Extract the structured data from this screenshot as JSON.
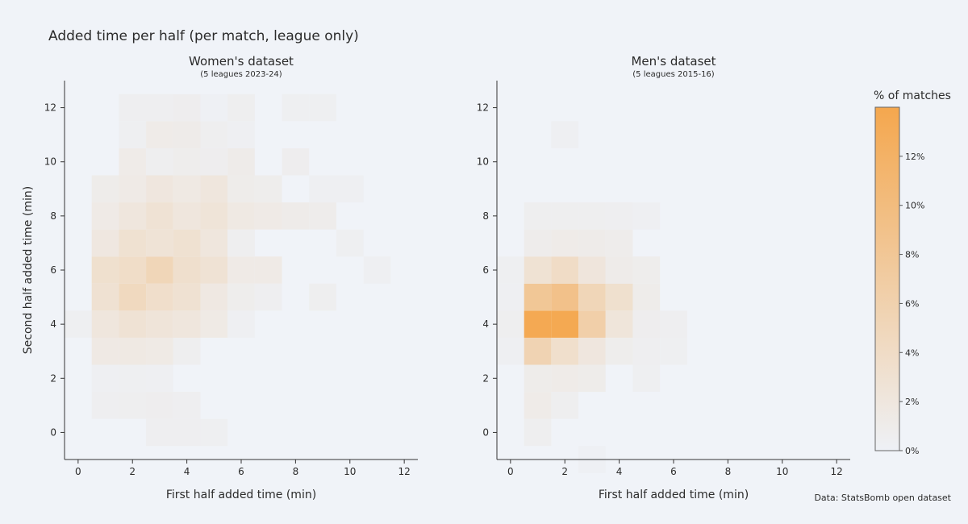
{
  "title": "Added time per half (per match, league only)",
  "source_note": "Data: StatsBomb open dataset",
  "colorbar": {
    "label": "% of matches",
    "ticks": [
      "0%",
      "2%",
      "4%",
      "6%",
      "8%",
      "10%",
      "12%"
    ],
    "tick_values": [
      0,
      2,
      4,
      6,
      8,
      10,
      12
    ],
    "max": 14,
    "color_low": "#eef1f6",
    "color_high": "#f4a74e"
  },
  "chart_data": [
    {
      "type": "heatmap",
      "title": "Women's dataset",
      "subtitle": "(5 leagues 2023-24)",
      "xlabel": "First half added time (min)",
      "ylabel": "Second half added time (min)",
      "xlim": [
        -0.5,
        12.5
      ],
      "ylim": [
        -1,
        13
      ],
      "xticks": [
        0,
        2,
        4,
        6,
        8,
        10,
        12
      ],
      "yticks": [
        0,
        2,
        4,
        6,
        8,
        10,
        12
      ],
      "value_unit": "% of matches",
      "cells": [
        [
          0,
          4,
          0.4
        ],
        [
          1,
          1,
          0.5
        ],
        [
          2,
          1,
          0.6
        ],
        [
          3,
          1,
          0.7
        ],
        [
          4,
          1,
          0.5
        ],
        [
          1,
          3,
          1.5
        ],
        [
          2,
          3,
          1.6
        ],
        [
          3,
          3,
          1.4
        ],
        [
          4,
          3,
          0.6
        ],
        [
          1,
          4,
          2.1
        ],
        [
          2,
          4,
          2.8
        ],
        [
          3,
          4,
          2.4
        ],
        [
          4,
          4,
          2.1
        ],
        [
          5,
          4,
          1.4
        ],
        [
          6,
          4,
          0.3
        ],
        [
          1,
          5,
          3.0
        ],
        [
          2,
          5,
          4.6
        ],
        [
          3,
          5,
          3.6
        ],
        [
          4,
          5,
          3.0
        ],
        [
          5,
          5,
          1.7
        ],
        [
          6,
          5,
          0.8
        ],
        [
          7,
          5,
          0.5
        ],
        [
          9,
          5,
          0.6
        ],
        [
          1,
          6,
          3.3
        ],
        [
          2,
          6,
          3.8
        ],
        [
          3,
          6,
          5.2
        ],
        [
          4,
          6,
          3.4
        ],
        [
          5,
          6,
          2.8
        ],
        [
          6,
          6,
          1.3
        ],
        [
          7,
          6,
          1.3
        ],
        [
          11,
          6,
          0.3
        ],
        [
          1,
          7,
          1.8
        ],
        [
          2,
          7,
          3.1
        ],
        [
          3,
          7,
          2.7
        ],
        [
          4,
          7,
          3.1
        ],
        [
          5,
          7,
          2.1
        ],
        [
          6,
          7,
          0.6
        ],
        [
          10,
          7,
          0.4
        ],
        [
          1,
          8,
          1.3
        ],
        [
          2,
          8,
          2.1
        ],
        [
          3,
          8,
          2.8
        ],
        [
          4,
          8,
          2.1
        ],
        [
          5,
          8,
          2.5
        ],
        [
          6,
          8,
          1.6
        ],
        [
          7,
          8,
          1.3
        ],
        [
          8,
          8,
          1.1
        ],
        [
          9,
          8,
          0.9
        ],
        [
          1,
          9,
          1.0
        ],
        [
          2,
          9,
          1.3
        ],
        [
          3,
          9,
          2.0
        ],
        [
          4,
          9,
          1.6
        ],
        [
          5,
          9,
          2.1
        ],
        [
          6,
          9,
          1.0
        ],
        [
          7,
          9,
          0.8
        ],
        [
          9,
          9,
          0.3
        ],
        [
          10,
          9,
          0.3
        ],
        [
          2,
          10,
          1.2
        ],
        [
          3,
          10,
          0.6
        ],
        [
          4,
          10,
          0.8
        ],
        [
          5,
          10,
          0.7
        ],
        [
          6,
          10,
          1.1
        ],
        [
          8,
          10,
          0.7
        ],
        [
          2,
          11,
          0.4
        ],
        [
          3,
          11,
          1.2
        ],
        [
          4,
          11,
          1.1
        ],
        [
          5,
          11,
          0.6
        ],
        [
          6,
          11,
          0.3
        ],
        [
          2,
          12,
          0.5
        ],
        [
          3,
          12,
          0.5
        ],
        [
          4,
          12,
          0.7
        ],
        [
          5,
          12,
          0.2
        ],
        [
          6,
          12,
          0.6
        ],
        [
          8,
          12,
          0.4
        ],
        [
          9,
          12,
          0.4
        ],
        [
          3,
          0,
          0.5
        ],
        [
          4,
          0,
          0.5
        ],
        [
          5,
          0,
          0.4
        ],
        [
          1,
          2,
          0.3
        ],
        [
          2,
          2,
          0.4
        ],
        [
          3,
          2,
          0.3
        ]
      ]
    },
    {
      "type": "heatmap",
      "title": "Men's dataset",
      "subtitle": "(5 leagues 2015-16)",
      "xlabel": "First half added time (min)",
      "ylabel": "",
      "xlim": [
        -0.5,
        12.5
      ],
      "ylim": [
        -1,
        13
      ],
      "xticks": [
        0,
        2,
        4,
        6,
        8,
        10,
        12
      ],
      "yticks": [
        0,
        2,
        4,
        6,
        8,
        10,
        12
      ],
      "value_unit": "% of matches",
      "cells": [
        [
          0,
          3,
          0.3
        ],
        [
          0,
          4,
          0.6
        ],
        [
          0,
          5,
          0.3
        ],
        [
          0,
          6,
          0.4
        ],
        [
          1,
          0,
          0.6
        ],
        [
          1,
          1,
          1.2
        ],
        [
          1,
          2,
          1.0
        ],
        [
          1,
          3,
          5.6
        ],
        [
          1,
          4,
          13.6
        ],
        [
          1,
          5,
          8.0
        ],
        [
          1,
          6,
          2.9
        ],
        [
          1,
          7,
          0.9
        ],
        [
          1,
          8,
          0.6
        ],
        [
          2,
          1,
          0.6
        ],
        [
          2,
          2,
          1.2
        ],
        [
          2,
          3,
          3.5
        ],
        [
          2,
          4,
          13.7
        ],
        [
          2,
          5,
          9.0
        ],
        [
          2,
          6,
          4.0
        ],
        [
          2,
          7,
          1.2
        ],
        [
          2,
          8,
          0.6
        ],
        [
          2,
          11,
          0.3
        ],
        [
          3,
          -1,
          0.2
        ],
        [
          3,
          2,
          1.0
        ],
        [
          3,
          3,
          2.0
        ],
        [
          3,
          4,
          6.4
        ],
        [
          3,
          5,
          5.2
        ],
        [
          3,
          6,
          2.2
        ],
        [
          3,
          7,
          1.1
        ],
        [
          3,
          8,
          0.6
        ],
        [
          4,
          3,
          0.8
        ],
        [
          4,
          4,
          2.3
        ],
        [
          4,
          5,
          3.3
        ],
        [
          4,
          6,
          1.1
        ],
        [
          4,
          7,
          0.9
        ],
        [
          4,
          8,
          0.5
        ],
        [
          5,
          2,
          0.4
        ],
        [
          5,
          3,
          0.5
        ],
        [
          5,
          4,
          0.7
        ],
        [
          5,
          5,
          1.0
        ],
        [
          5,
          6,
          0.8
        ],
        [
          5,
          8,
          0.3
        ],
        [
          6,
          3,
          0.4
        ],
        [
          6,
          4,
          0.5
        ]
      ]
    }
  ]
}
